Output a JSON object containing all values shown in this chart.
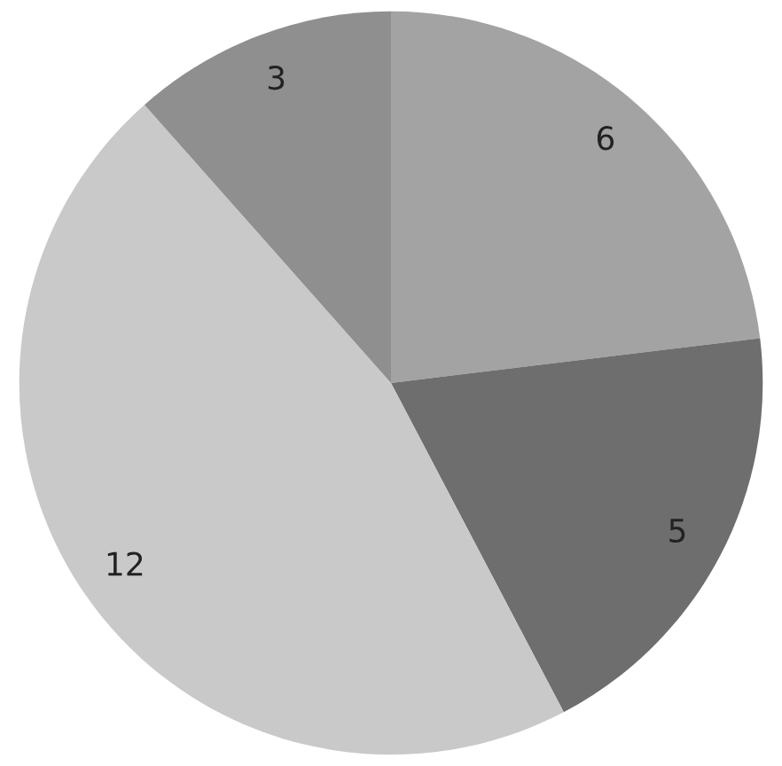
{
  "chart_data": {
    "type": "pie",
    "categories": [
      null,
      null,
      null,
      null
    ],
    "values": [
      6,
      5,
      12,
      3
    ],
    "colors": [
      "#a3a3a3",
      "#6e6e6e",
      "#c9c9c9",
      "#8f8f8f"
    ],
    "data_labels": true
  }
}
